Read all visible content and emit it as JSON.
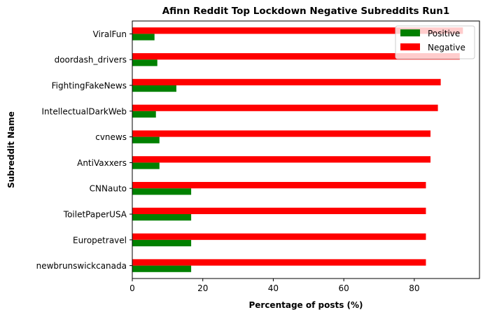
{
  "chart_data": {
    "type": "bar",
    "orientation": "horizontal",
    "title": "Afinn Reddit Top Lockdown Negative Subreddits Run1",
    "xlabel": "Percentage of posts (%)",
    "ylabel": "Subreddit Name",
    "xlim": [
      0,
      98.5
    ],
    "xticks": [
      0,
      20,
      40,
      60,
      80
    ],
    "grid": false,
    "legend_position": "top-right",
    "categories": [
      "ViralFun",
      "doordash_drivers",
      "FightingFakeNews",
      "IntellectualDarkWeb",
      "cvnews",
      "AntiVaxxers",
      "CNNauto",
      "ToiletPaperUSA",
      "Europetravel",
      "newbrunswickcanada"
    ],
    "series": [
      {
        "name": "Positive",
        "color": "#008000",
        "values": [
          6.3,
          7.1,
          12.5,
          6.7,
          7.7,
          7.7,
          16.7,
          16.7,
          16.7,
          16.7
        ]
      },
      {
        "name": "Negative",
        "color": "#ff0000",
        "values": [
          93.8,
          92.9,
          87.5,
          86.7,
          84.6,
          84.6,
          83.3,
          83.3,
          83.3,
          83.3
        ]
      }
    ]
  }
}
